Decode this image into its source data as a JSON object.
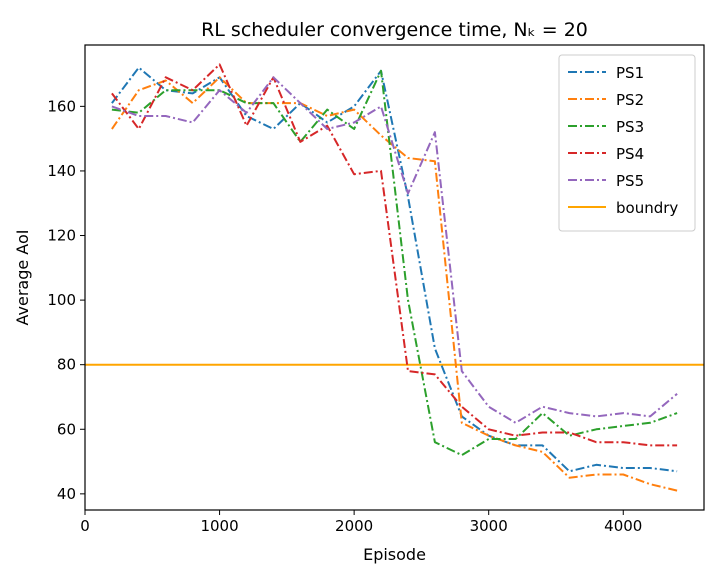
{
  "chart_data": {
    "type": "line",
    "title": "RL scheduler convergence time, Nₖ = 20",
    "xlabel": "Episode",
    "ylabel": "Average AoI",
    "xlim": [
      0,
      4600
    ],
    "ylim": [
      35,
      179
    ],
    "xticks": [
      0,
      1000,
      2000,
      3000,
      4000
    ],
    "yticks": [
      40,
      60,
      80,
      100,
      120,
      140,
      160
    ],
    "grid": false,
    "legend_position": "top-right",
    "x": [
      200,
      400,
      600,
      800,
      1000,
      1200,
      1400,
      1600,
      1800,
      2000,
      2200,
      2400,
      2600,
      2800,
      3000,
      3200,
      3400,
      3600,
      3800,
      4000,
      4200,
      4400
    ],
    "series": [
      {
        "name": "PS1",
        "color": "#1f77b4",
        "style": "dashdot",
        "values": [
          161,
          172,
          165,
          164,
          169,
          157,
          153,
          161,
          155,
          160,
          171,
          132,
          85,
          64,
          58,
          55,
          55,
          47,
          49,
          48,
          48,
          47
        ]
      },
      {
        "name": "PS2",
        "color": "#ff7f0e",
        "style": "dashdot",
        "values": [
          153,
          165,
          168,
          161,
          169,
          161,
          161,
          161,
          157,
          159,
          151,
          144,
          143,
          62,
          58,
          55,
          53,
          45,
          46,
          46,
          43,
          41
        ]
      },
      {
        "name": "PS3",
        "color": "#2ca02c",
        "style": "dashdot",
        "values": [
          159,
          158,
          165,
          165,
          165,
          161,
          161,
          149,
          159,
          153,
          171,
          100,
          56,
          52,
          57,
          57,
          65,
          58,
          60,
          61,
          62,
          65
        ]
      },
      {
        "name": "PS4",
        "color": "#d62728",
        "style": "dashdot",
        "values": [
          164,
          153,
          169,
          165,
          173,
          154,
          169,
          149,
          154,
          139,
          140,
          78,
          77,
          67,
          60,
          58,
          59,
          59,
          56,
          56,
          55,
          55
        ]
      },
      {
        "name": "PS5",
        "color": "#9467bd",
        "style": "dashdot",
        "values": [
          160,
          157,
          157,
          155,
          165,
          158,
          169,
          161,
          153,
          155,
          160,
          133,
          152,
          78,
          67,
          62,
          67,
          65,
          64,
          65,
          64,
          71
        ]
      }
    ],
    "hlines": [
      {
        "name": "boundry",
        "y": 80,
        "color": "#ffa500",
        "style": "solid"
      }
    ]
  }
}
